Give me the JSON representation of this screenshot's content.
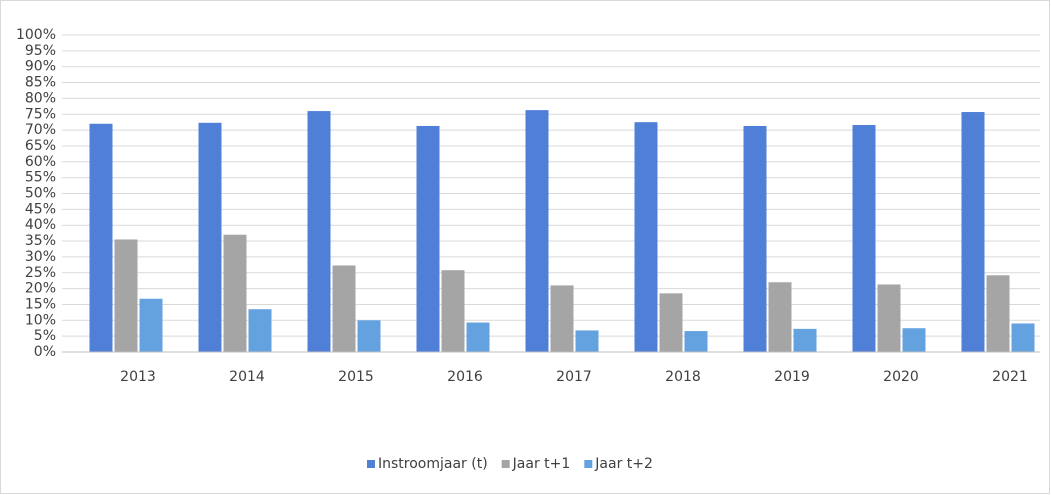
{
  "chart_data": {
    "type": "bar",
    "categories": [
      "2013",
      "2014",
      "2015",
      "2016",
      "2017",
      "2018",
      "2019",
      "2020",
      "2021"
    ],
    "series": [
      {
        "name": "Instroomjaar (t)",
        "color": "#4f7fd6",
        "values": [
          72,
          72.3,
          76,
          71.3,
          76.3,
          72.5,
          71.3,
          71.6,
          75.7
        ]
      },
      {
        "name": "Jaar t+1",
        "color": "#a5a5a5",
        "values": [
          35.5,
          37,
          27.3,
          25.8,
          21,
          18.5,
          22,
          21.3,
          24.2
        ]
      },
      {
        "name": "Jaar t+2",
        "color": "#64a2df",
        "values": [
          16.8,
          13.5,
          10,
          9.3,
          6.8,
          6.6,
          7.3,
          7.5,
          9
        ]
      }
    ],
    "ylim": [
      0,
      100
    ],
    "yticks": [
      {
        "value": 0,
        "label": "0%"
      },
      {
        "value": 5,
        "label": "5%"
      },
      {
        "value": 10,
        "label": "10%"
      },
      {
        "value": 15,
        "label": "15%"
      },
      {
        "value": 20,
        "label": "20%"
      },
      {
        "value": 25,
        "label": "25%"
      },
      {
        "value": 30,
        "label": "30%"
      },
      {
        "value": 35,
        "label": "35%"
      },
      {
        "value": 40,
        "label": "40%"
      },
      {
        "value": 45,
        "label": "45%"
      },
      {
        "value": 50,
        "label": "50%"
      },
      {
        "value": 55,
        "label": "55%"
      },
      {
        "value": 60,
        "label": "60%"
      },
      {
        "value": 65,
        "label": "65%"
      },
      {
        "value": 70,
        "label": "70%"
      },
      {
        "value": 75,
        "label": "75%"
      },
      {
        "value": 80,
        "label": "80%"
      },
      {
        "value": 85,
        "label": "85%"
      },
      {
        "value": 90,
        "label": "90%"
      },
      {
        "value": 95,
        "label": "95%"
      },
      {
        "value": 100,
        "label": "100%"
      }
    ],
    "grid": true,
    "legend": "bottom"
  }
}
